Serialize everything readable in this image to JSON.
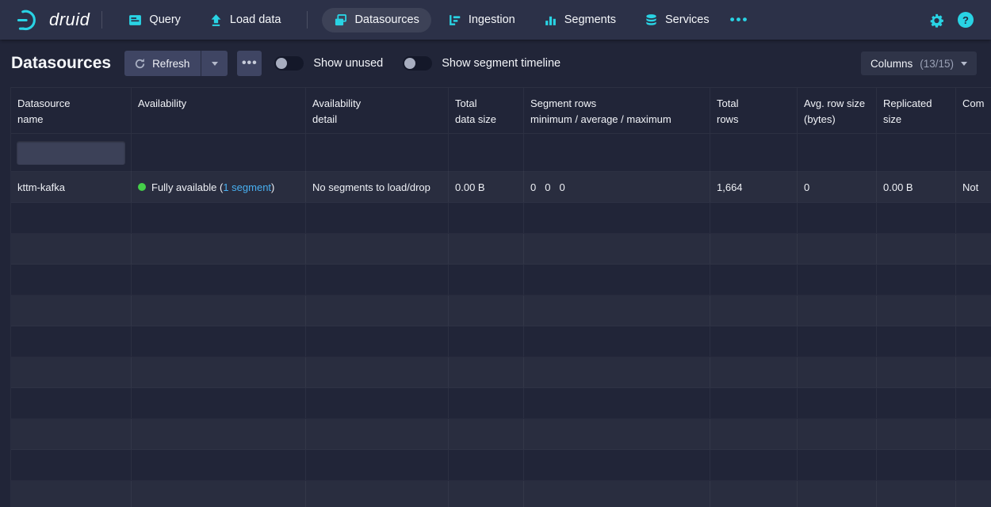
{
  "navbar": {
    "brand": "druid",
    "items": [
      {
        "label": "Query",
        "icon": "console-icon",
        "active": false
      },
      {
        "label": "Load data",
        "icon": "upload-icon",
        "active": false
      },
      {
        "label": "Datasources",
        "icon": "layers-icon",
        "active": true
      },
      {
        "label": "Ingestion",
        "icon": "ingestion-icon",
        "active": false
      },
      {
        "label": "Segments",
        "icon": "bar-chart-icon",
        "active": false
      },
      {
        "label": "Services",
        "icon": "database-icon",
        "active": false
      }
    ],
    "more_label": "•••",
    "help_label": "?"
  },
  "toolbar": {
    "title": "Datasources",
    "refresh_label": "Refresh",
    "more_label": "•••",
    "show_unused_label": "Show unused",
    "show_unused_on": false,
    "show_timeline_label": "Show segment timeline",
    "show_timeline_on": false,
    "columns_label": "Columns",
    "columns_count": "(13/15)"
  },
  "table": {
    "columns": [
      {
        "id": "datasource-name",
        "lines": [
          "Datasource",
          "name"
        ]
      },
      {
        "id": "availability",
        "lines": [
          "Availability",
          ""
        ]
      },
      {
        "id": "availability-detail",
        "lines": [
          "Availability",
          "detail"
        ]
      },
      {
        "id": "total-data-size",
        "lines": [
          "Total",
          "data size"
        ]
      },
      {
        "id": "segment-rows",
        "lines": [
          "Segment rows",
          "minimum / average / maximum"
        ]
      },
      {
        "id": "total-rows",
        "lines": [
          "Total",
          "rows"
        ]
      },
      {
        "id": "avg-row-size",
        "lines": [
          "Avg. row size",
          "(bytes)"
        ]
      },
      {
        "id": "replicated-size",
        "lines": [
          "Replicated",
          "size"
        ]
      },
      {
        "id": "compaction",
        "lines": [
          "Com",
          ""
        ]
      }
    ],
    "filter": {
      "value": ""
    },
    "rows": [
      {
        "name": "kttm-kafka",
        "availability_prefix": "Fully available (",
        "availability_link": "1 segment",
        "availability_suffix": ")",
        "availability_detail": "No segments to load/drop",
        "total_data_size": "0.00 B",
        "segment_rows": [
          "0",
          "0",
          "0"
        ],
        "total_rows": "1,664",
        "avg_row_size": "0",
        "replicated_size": "0.00 B",
        "compaction": "Not"
      }
    ],
    "empty_row_count": 10
  },
  "colors": {
    "accent_cyan": "#29d3e4",
    "link_blue": "#48aff0",
    "status_green": "#45cf49",
    "navbar_bg": "#2c3148",
    "page_bg": "#212538"
  }
}
